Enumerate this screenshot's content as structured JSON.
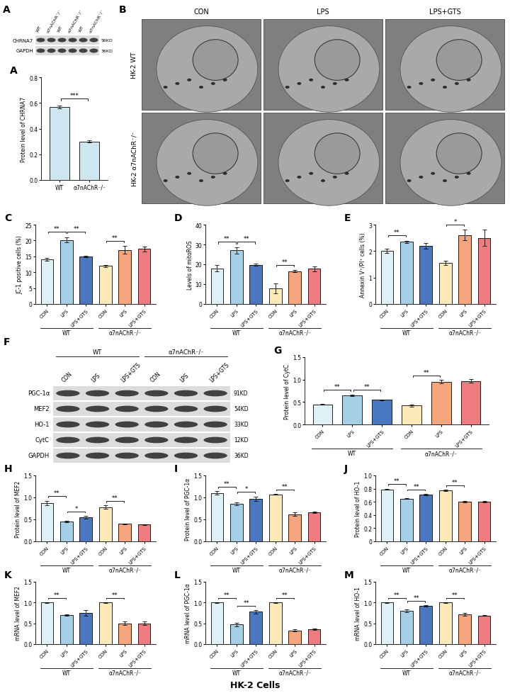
{
  "chart_data": [
    {
      "panel": "A",
      "type": "bar",
      "ylabel": "Protein level of CHRNA7",
      "categories": [
        "WT",
        "α7nAChR⁻/⁻"
      ],
      "values": [
        0.57,
        0.3
      ],
      "errors": [
        0.01,
        0.01
      ],
      "colors": [
        "#cde6ef",
        "#cde6ef"
      ],
      "ylim": [
        0,
        0.8
      ],
      "yticks": [
        {
          "value": 0,
          "label": "0.0"
        },
        0.2,
        0.4,
        0.6,
        0.8
      ],
      "significance": [
        {
          "from": 0,
          "to": 1,
          "label": "***"
        }
      ]
    },
    {
      "panel": "C",
      "type": "bar",
      "ylabel": "JC-1 positive cells (%)",
      "categories": [
        "CON",
        "LPS",
        "LPS+GTS",
        "CON",
        "LPS",
        "LPS+GTS"
      ],
      "values": [
        14,
        20.2,
        15,
        12,
        17,
        17.3
      ],
      "errors": [
        0.4,
        0.8,
        0.2,
        0.3,
        1.2,
        0.8
      ],
      "colors": [
        "#e0f1f6",
        "#a6cfe6",
        "#4a78c0",
        "#fbe9b7",
        "#f5a67f",
        "#ef7d7f"
      ],
      "ylim": [
        0,
        25
      ],
      "yticks": [
        0,
        5,
        10,
        15,
        20,
        25
      ],
      "groups": [
        {
          "label": "WT",
          "start": 0,
          "end": 2
        },
        {
          "label": "α7nAChR⁻/⁻",
          "start": 3,
          "end": 5
        }
      ],
      "significance": [
        {
          "from": 0,
          "to": 1,
          "label": "**"
        },
        {
          "from": 1,
          "to": 2,
          "label": "**"
        },
        {
          "from": 3,
          "to": 4,
          "label": "**"
        }
      ]
    },
    {
      "panel": "D",
      "type": "bar",
      "ylabel": "Levels of mitoROS",
      "categories": [
        "CON",
        "LPS",
        "LPS+GTS",
        "CON",
        "LPS",
        "LPS+GTS"
      ],
      "values": [
        18,
        27,
        19.8,
        8,
        16.5,
        17.8
      ],
      "errors": [
        1.5,
        1.5,
        0.4,
        2.5,
        0.5,
        1.2
      ],
      "colors": [
        "#e0f1f6",
        "#a6cfe6",
        "#4a78c0",
        "#fbe9b7",
        "#f5a67f",
        "#ef7d7f"
      ],
      "ylim": [
        0,
        40
      ],
      "yticks": [
        0,
        10,
        20,
        30,
        40
      ],
      "groups": [
        {
          "label": "WT",
          "start": 0,
          "end": 2
        },
        {
          "label": "α7nAChR⁻/⁻",
          "start": 3,
          "end": 5
        }
      ],
      "significance": [
        {
          "from": 0,
          "to": 1,
          "label": "**"
        },
        {
          "from": 1,
          "to": 2,
          "label": "**"
        },
        {
          "from": 3,
          "to": 4,
          "label": "**"
        }
      ]
    },
    {
      "panel": "E",
      "type": "bar",
      "ylabel": "Annexin V⁺/PI⁺ cells (%)",
      "categories": [
        "CON",
        "LPS",
        "LPS+GTS",
        "CON",
        "LPS",
        "LPS+GTS"
      ],
      "values": [
        2.0,
        2.35,
        2.2,
        1.55,
        2.6,
        2.5
      ],
      "errors": [
        0.08,
        0.04,
        0.1,
        0.08,
        0.2,
        0.3
      ],
      "colors": [
        "#e0f1f6",
        "#a6cfe6",
        "#4a78c0",
        "#fbe9b7",
        "#f5a67f",
        "#ef7d7f"
      ],
      "ylim": [
        0,
        3
      ],
      "yticks": [
        0,
        1,
        2,
        3
      ],
      "groups": [
        {
          "label": "WT",
          "start": 0,
          "end": 2
        },
        {
          "label": "α7nAChR⁻/⁻",
          "start": 3,
          "end": 5
        }
      ],
      "significance": [
        {
          "from": 0,
          "to": 1,
          "label": "**"
        },
        {
          "from": 3,
          "to": 4,
          "label": "*"
        }
      ]
    },
    {
      "panel": "G",
      "type": "bar",
      "ylabel": "Protein level of CytC",
      "categories": [
        "CON",
        "LPS",
        "LPS+GTS",
        "CON",
        "LPS",
        "LPS+GTS"
      ],
      "values": [
        0.45,
        0.65,
        0.55,
        0.42,
        0.95,
        0.97
      ],
      "errors": [
        0.01,
        0.02,
        0.01,
        0.02,
        0.04,
        0.04
      ],
      "colors": [
        "#e0f1f6",
        "#a6cfe6",
        "#4a78c0",
        "#fbe9b7",
        "#f5a67f",
        "#ef7d7f"
      ],
      "ylim": [
        0,
        1.5
      ],
      "yticks": [
        {
          "value": 0,
          "label": "0.0"
        },
        0.5,
        1.0,
        1.5
      ],
      "groups": [
        {
          "label": "WT",
          "start": 0,
          "end": 2
        },
        {
          "label": "α7nAChR⁻/⁻",
          "start": 3,
          "end": 5
        }
      ],
      "significance": [
        {
          "from": 0,
          "to": 1,
          "label": "**"
        },
        {
          "from": 1,
          "to": 2,
          "label": "**"
        },
        {
          "from": 3,
          "to": 4,
          "label": "**"
        }
      ]
    },
    {
      "panel": "H",
      "type": "bar",
      "ylabel": "Protein level of MEF2",
      "categories": [
        "CON",
        "LPS",
        "LPS+GTS",
        "CON",
        "LPS",
        "LPS+GTS"
      ],
      "values": [
        0.87,
        0.45,
        0.55,
        0.78,
        0.4,
        0.38
      ],
      "errors": [
        0.05,
        0.02,
        0.03,
        0.04,
        0.01,
        0.01
      ],
      "colors": [
        "#e0f1f6",
        "#a6cfe6",
        "#4a78c0",
        "#fbe9b7",
        "#f5a67f",
        "#ef7d7f"
      ],
      "ylim": [
        0,
        1.5
      ],
      "yticks": [
        {
          "value": 0,
          "label": "0.0"
        },
        0.5,
        1.0,
        1.5
      ],
      "groups": [
        {
          "label": "WT",
          "start": 0,
          "end": 2
        },
        {
          "label": "α7nAChR⁻/⁻",
          "start": 3,
          "end": 5
        }
      ],
      "significance": [
        {
          "from": 0,
          "to": 1,
          "label": "**"
        },
        {
          "from": 1,
          "to": 2,
          "label": "*"
        },
        {
          "from": 3,
          "to": 4,
          "label": "**"
        }
      ]
    },
    {
      "panel": "I",
      "type": "bar",
      "ylabel": "Protein level of PGC-1α",
      "categories": [
        "CON",
        "LPS",
        "LPS+GTS",
        "CON",
        "LPS",
        "LPS+GTS"
      ],
      "values": [
        1.1,
        0.85,
        0.97,
        1.07,
        0.62,
        0.66
      ],
      "errors": [
        0.04,
        0.03,
        0.05,
        0.01,
        0.04,
        0.01
      ],
      "colors": [
        "#e0f1f6",
        "#a6cfe6",
        "#4a78c0",
        "#fbe9b7",
        "#f5a67f",
        "#ef7d7f"
      ],
      "ylim": [
        0,
        1.5
      ],
      "yticks": [
        {
          "value": 0,
          "label": "0.0"
        },
        0.5,
        1.0,
        1.5
      ],
      "groups": [
        {
          "label": "WT",
          "start": 0,
          "end": 2
        },
        {
          "label": "α7nAChR⁻/⁻",
          "start": 3,
          "end": 5
        }
      ],
      "significance": [
        {
          "from": 0,
          "to": 1,
          "label": "**"
        },
        {
          "from": 1,
          "to": 2,
          "label": "*"
        },
        {
          "from": 3,
          "to": 4,
          "label": "**"
        }
      ]
    },
    {
      "panel": "J",
      "type": "bar",
      "ylabel": "Protein level of HO-1",
      "categories": [
        "CON",
        "LPS",
        "LPS+GTS",
        "CON",
        "LPS",
        "LPS+GTS"
      ],
      "values": [
        0.79,
        0.65,
        0.71,
        0.77,
        0.6,
        0.6
      ],
      "errors": [
        0.01,
        0.01,
        0.01,
        0.01,
        0.01,
        0.01
      ],
      "colors": [
        "#e0f1f6",
        "#a6cfe6",
        "#4a78c0",
        "#fbe9b7",
        "#f5a67f",
        "#ef7d7f"
      ],
      "ylim": [
        0,
        1.0
      ],
      "yticks": [
        0,
        0.2,
        0.4,
        0.6,
        0.8,
        1.0
      ],
      "groups": [
        {
          "label": "WT",
          "start": 0,
          "end": 2
        },
        {
          "label": "α7nAChR⁻/⁻",
          "start": 3,
          "end": 5
        }
      ],
      "significance": [
        {
          "from": 0,
          "to": 1,
          "label": "**"
        },
        {
          "from": 1,
          "to": 2,
          "label": "**"
        },
        {
          "from": 3,
          "to": 4,
          "label": "**"
        }
      ]
    },
    {
      "panel": "K",
      "type": "bar",
      "ylabel": "mRNA level of MEF2",
      "categories": [
        "CON",
        "LPS",
        "LPS+GTS",
        "CON",
        "LPS",
        "LPS+GTS"
      ],
      "values": [
        1.0,
        0.7,
        0.75,
        1.0,
        0.5,
        0.5
      ],
      "errors": [
        0.01,
        0.01,
        0.06,
        0.01,
        0.04,
        0.04
      ],
      "colors": [
        "#e0f1f6",
        "#a6cfe6",
        "#4a78c0",
        "#fbe9b7",
        "#f5a67f",
        "#ef7d7f"
      ],
      "ylim": [
        0,
        1.5
      ],
      "yticks": [
        {
          "value": 0,
          "label": "0.0"
        },
        0.5,
        1.0,
        1.5
      ],
      "groups": [
        {
          "label": "WT",
          "start": 0,
          "end": 2
        },
        {
          "label": "α7nAChR⁻/⁻",
          "start": 3,
          "end": 5
        }
      ],
      "significance": [
        {
          "from": 0,
          "to": 1,
          "label": "**"
        },
        {
          "from": 3,
          "to": 4,
          "label": "**"
        }
      ]
    },
    {
      "panel": "L",
      "type": "bar",
      "ylabel": "mRNA level of PGC-1α",
      "categories": [
        "CON",
        "LPS",
        "LPS+GTS",
        "CON",
        "LPS",
        "LPS+GTS"
      ],
      "values": [
        1.0,
        0.47,
        0.78,
        1.0,
        0.33,
        0.36
      ],
      "errors": [
        0.01,
        0.04,
        0.04,
        0.01,
        0.02,
        0.02
      ],
      "colors": [
        "#e0f1f6",
        "#a6cfe6",
        "#4a78c0",
        "#fbe9b7",
        "#f5a67f",
        "#ef7d7f"
      ],
      "ylim": [
        0,
        1.5
      ],
      "yticks": [
        {
          "value": 0,
          "label": "0.0"
        },
        0.5,
        1.0,
        1.5
      ],
      "groups": [
        {
          "label": "WT",
          "start": 0,
          "end": 2
        },
        {
          "label": "α7nAChR⁻/⁻",
          "start": 3,
          "end": 5
        }
      ],
      "significance": [
        {
          "from": 0,
          "to": 1,
          "label": "**"
        },
        {
          "from": 1,
          "to": 2,
          "label": "**"
        },
        {
          "from": 3,
          "to": 4,
          "label": "**"
        }
      ]
    },
    {
      "panel": "M",
      "type": "bar",
      "ylabel": "mRNA level of HO-1",
      "categories": [
        "CON",
        "LPS",
        "LPS+GTS",
        "CON",
        "LPS",
        "LPS+GTS"
      ],
      "values": [
        1.0,
        0.8,
        0.92,
        1.0,
        0.72,
        0.69
      ],
      "errors": [
        0.01,
        0.03,
        0.01,
        0.01,
        0.03,
        0.01
      ],
      "colors": [
        "#e0f1f6",
        "#a6cfe6",
        "#4a78c0",
        "#fbe9b7",
        "#f5a67f",
        "#ef7d7f"
      ],
      "ylim": [
        0,
        1.5
      ],
      "yticks": [
        {
          "value": 0,
          "label": "0.0"
        },
        0.5,
        1.0,
        1.5
      ],
      "groups": [
        {
          "label": "WT",
          "start": 0,
          "end": 2
        },
        {
          "label": "α7nAChR⁻/⁻",
          "start": 3,
          "end": 5
        }
      ],
      "significance": [
        {
          "from": 0,
          "to": 1,
          "label": "**"
        },
        {
          "from": 1,
          "to": 2,
          "label": "**"
        },
        {
          "from": 3,
          "to": 4,
          "label": "**"
        }
      ]
    }
  ],
  "blots": [
    {
      "panel": "A",
      "lanes": [
        "WT",
        "α7nAChR⁻/⁻",
        "WT",
        "α7nAChR⁻/⁻",
        "WT",
        "α7nAChR⁻/⁻"
      ],
      "rows": [
        {
          "name": "CHRNA7",
          "size": "56KD"
        },
        {
          "name": "GAPDH",
          "size": "36KD"
        }
      ]
    },
    {
      "panel": "F",
      "lanes": [
        "CON",
        "LPS",
        "LPS+GTS",
        "CON",
        "LPS",
        "LPS+GTS"
      ],
      "groups": [
        {
          "label": "WT",
          "start": 0,
          "end": 2
        },
        {
          "label": "α7nAChR⁻/⁻",
          "start": 3,
          "end": 5
        }
      ],
      "rows": [
        {
          "name": "PGC-1α",
          "size": "91KD"
        },
        {
          "name": "MEF2",
          "size": "54KD"
        },
        {
          "name": "HO-1",
          "size": "33KD"
        },
        {
          "name": "CytC",
          "size": "12KD"
        },
        {
          "name": "GAPDH",
          "size": "36KD"
        }
      ]
    }
  ],
  "micrographs": {
    "panel": "B",
    "columns": [
      "CON",
      "LPS",
      "LPS+GTS"
    ],
    "rows": [
      "HK-2 WT",
      "HK-2 α7nAChR⁻/⁻"
    ]
  },
  "footer": "HK-2 Cells"
}
